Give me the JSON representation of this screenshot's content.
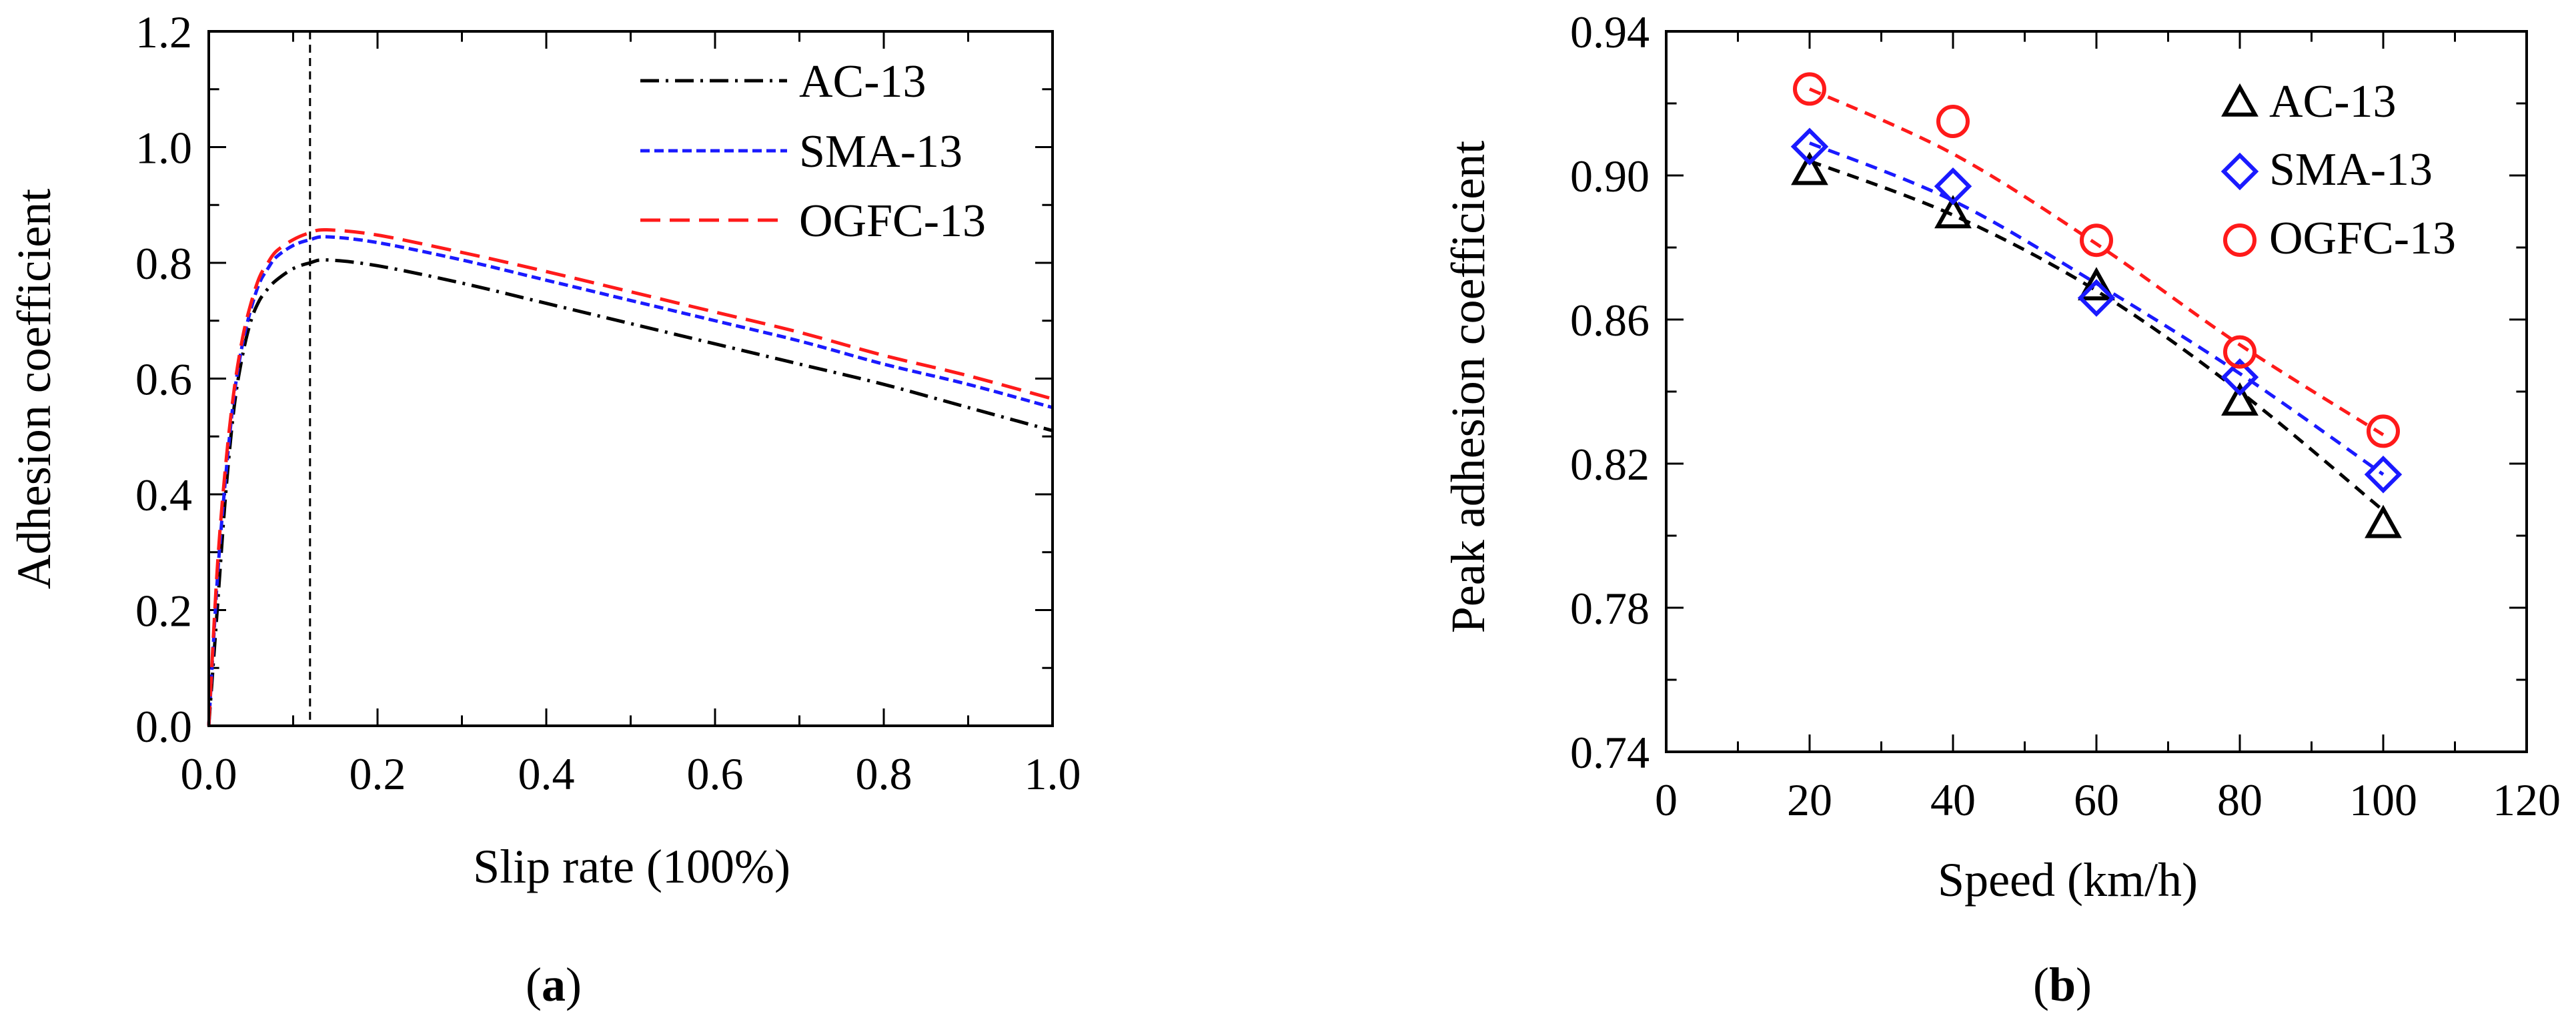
{
  "chart_data": [
    {
      "type": "line",
      "panel_label": "a",
      "title": "",
      "xlabel": "Slip rate (100%)",
      "ylabel": "Adhesion coefficient",
      "xlim": [
        0,
        1.0
      ],
      "ylim": [
        0,
        1.2
      ],
      "xticks": [
        "0.0",
        "0.2",
        "0.4",
        "0.6",
        "0.8",
        "1.0"
      ],
      "yticks": [
        "0.0",
        "0.2",
        "0.4",
        "0.6",
        "0.8",
        "1.0",
        "1.2"
      ],
      "reference_line_x": 0.12,
      "legend_position": "top-right",
      "series": [
        {
          "name": "AC-13",
          "color": "#000000",
          "dash": "dashdot",
          "x": [
            0,
            0.01,
            0.02,
            0.03,
            0.04,
            0.05,
            0.06,
            0.07,
            0.08,
            0.1,
            0.12,
            0.14,
            0.2,
            0.3,
            0.4,
            0.5,
            0.6,
            0.7,
            0.8,
            0.9,
            1.0
          ],
          "y": [
            0,
            0.2,
            0.4,
            0.55,
            0.64,
            0.7,
            0.735,
            0.755,
            0.77,
            0.79,
            0.8,
            0.805,
            0.795,
            0.765,
            0.73,
            0.695,
            0.66,
            0.625,
            0.59,
            0.55,
            0.51
          ]
        },
        {
          "name": "SMA-13",
          "color": "#1a1aff",
          "dash": "dash-fine",
          "x": [
            0,
            0.01,
            0.02,
            0.03,
            0.04,
            0.05,
            0.06,
            0.07,
            0.08,
            0.1,
            0.12,
            0.14,
            0.2,
            0.3,
            0.4,
            0.5,
            0.6,
            0.7,
            0.8,
            0.9,
            1.0
          ],
          "y": [
            0,
            0.25,
            0.43,
            0.57,
            0.66,
            0.72,
            0.765,
            0.79,
            0.81,
            0.83,
            0.84,
            0.845,
            0.835,
            0.805,
            0.77,
            0.735,
            0.7,
            0.665,
            0.625,
            0.59,
            0.55
          ]
        },
        {
          "name": "OGFC-13",
          "color": "#ff1a1a",
          "dash": "dash-long",
          "x": [
            0,
            0.01,
            0.02,
            0.03,
            0.04,
            0.05,
            0.06,
            0.07,
            0.08,
            0.1,
            0.12,
            0.14,
            0.2,
            0.3,
            0.4,
            0.5,
            0.6,
            0.7,
            0.8,
            0.9,
            1.0
          ],
          "y": [
            0,
            0.27,
            0.45,
            0.58,
            0.67,
            0.73,
            0.775,
            0.8,
            0.82,
            0.84,
            0.852,
            0.857,
            0.848,
            0.818,
            0.785,
            0.75,
            0.715,
            0.68,
            0.64,
            0.605,
            0.565
          ]
        }
      ]
    },
    {
      "type": "scatter",
      "panel_label": "b",
      "title": "",
      "xlabel": "Speed (km/h)",
      "ylabel": "Peak adhesion coefficient",
      "xlim": [
        0,
        120
      ],
      "ylim": [
        0.74,
        0.94
      ],
      "xticks": [
        "0",
        "20",
        "40",
        "60",
        "80",
        "100",
        "120"
      ],
      "yticks": [
        "0.74",
        "0.78",
        "0.82",
        "0.86",
        "0.90",
        "0.94"
      ],
      "legend_position": "top-right",
      "x": [
        20,
        40,
        60,
        80,
        100
      ],
      "series": [
        {
          "name": "AC-13",
          "color": "#000000",
          "marker": "triangle",
          "values": [
            0.901,
            0.889,
            0.869,
            0.837,
            0.803
          ],
          "fit_y": [
            0.904,
            0.889,
            0.868,
            0.84,
            0.807
          ]
        },
        {
          "name": "SMA-13",
          "color": "#1a1aff",
          "marker": "diamond",
          "values": [
            0.908,
            0.897,
            0.866,
            0.844,
            0.817
          ],
          "fit_y": [
            0.909,
            0.893,
            0.87,
            0.845,
            0.817
          ]
        },
        {
          "name": "OGFC-13",
          "color": "#ff1a1a",
          "marker": "circle",
          "values": [
            0.924,
            0.915,
            0.882,
            0.851,
            0.829
          ],
          "fit_y": [
            0.924,
            0.906,
            0.881,
            0.853,
            0.828
          ]
        }
      ]
    }
  ]
}
